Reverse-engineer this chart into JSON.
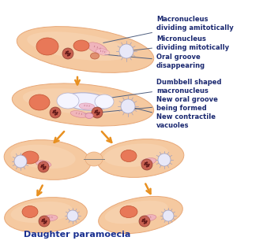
{
  "background_color": "#ffffff",
  "cell_fill": "#f5c9a0",
  "cell_fill_inner": "#f8d8b8",
  "cell_edge": "#e8a878",
  "mac_color": "#e87858",
  "mac_edge": "#c05030",
  "mic_color": "#d06858",
  "mic_edge": "#a04030",
  "oral_color": "#f0a8b8",
  "oral_edge": "#d07888",
  "vac_spoke": "#a0a0c0",
  "vac_fill": "#e8e8f8",
  "dumbbell_fill": "#f0f0ff",
  "dumbbell_edge": "#b0b0d0",
  "arrow_color": "#e89020",
  "label_color": "#1a2870",
  "line_color": "#506080",
  "title": "Daughter paramoecia",
  "title_color": "#1a3090",
  "labels": [
    "Macronucleus\ndividing amitotically",
    "Micronucleus\ndividing mitotically",
    "Oral groove\ndisappearing",
    "Dumbbell shaped\nmacronucleus",
    "New oral groove\nbeing formed",
    "New contractile\nvacuoles"
  ],
  "label_fontsize": 6.0
}
